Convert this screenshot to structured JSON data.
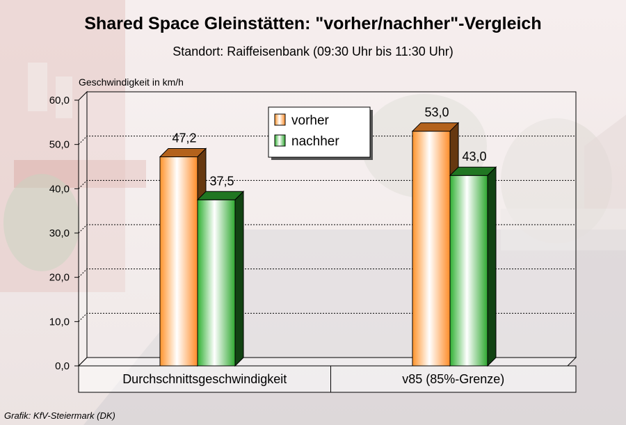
{
  "chart_data": {
    "type": "bar",
    "title": "Shared Space Gleinstätten: \"vorher/nachher\"-Vergleich",
    "subtitle": "Standort: Raiffeisenbank (09:30 Uhr bis 11:30 Uhr)",
    "ylabel": "Geschwindigkeit in km/h",
    "xlabel": "",
    "ylim": [
      0,
      60
    ],
    "yticks": [
      "0,0",
      "10,0",
      "20,0",
      "30,0",
      "40,0",
      "50,0",
      "60,0"
    ],
    "categories": [
      "Durchschnittsgeschwindigkeit",
      "v85 (85%-Grenze)"
    ],
    "series": [
      {
        "name": "vorher",
        "values": [
          47.2,
          53.0
        ],
        "labels": [
          "47,2",
          "53,0"
        ],
        "color": "#ff8c28"
      },
      {
        "name": "nachher",
        "values": [
          37.5,
          43.0
        ],
        "labels": [
          "37,5",
          "43,0"
        ],
        "color": "#2ea830"
      }
    ],
    "grid": true,
    "legend_position": "top-center"
  },
  "credit": "Grafik: KfV-Steiermark (DK)"
}
